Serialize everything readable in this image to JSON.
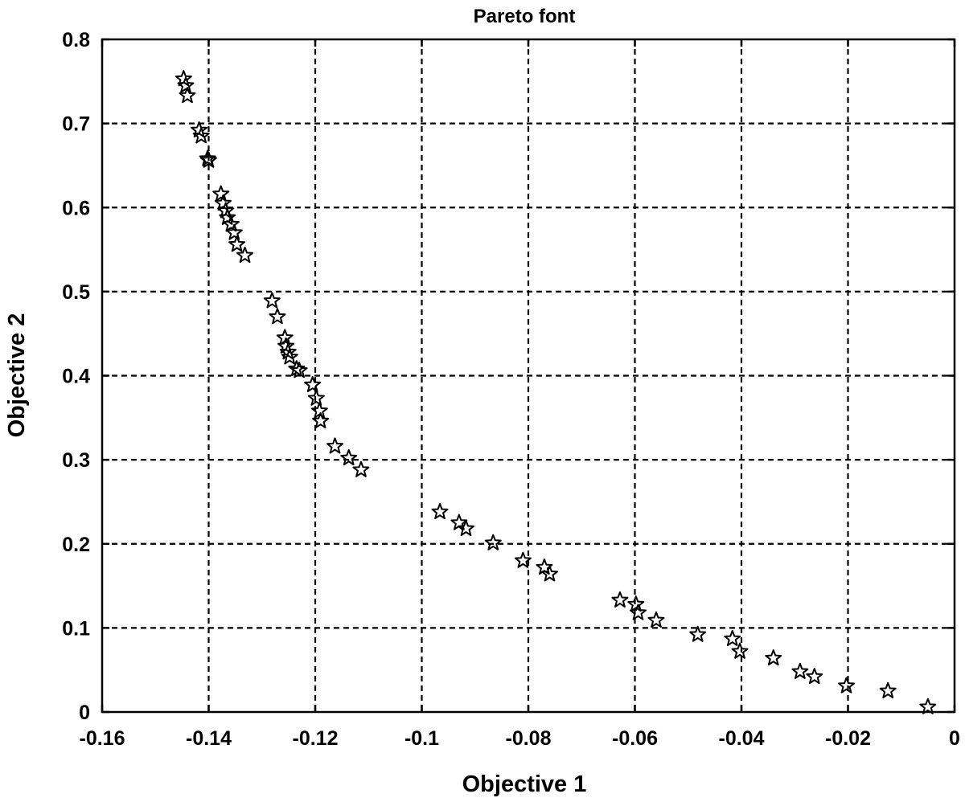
{
  "chart_data": {
    "type": "scatter",
    "title": "Pareto font",
    "xlabel": "Objective 1",
    "ylabel": "Objective 2",
    "xlim": [
      -0.16,
      0
    ],
    "ylim": [
      0,
      0.8
    ],
    "xticks": [
      -0.16,
      -0.14,
      -0.12,
      -0.1,
      -0.08,
      -0.06,
      -0.04,
      -0.02,
      0
    ],
    "xtick_labels": [
      "-0.16",
      "-0.14",
      "-0.12",
      "-0.1",
      "-0.08",
      "-0.06",
      "-0.04",
      "-0.02",
      "0"
    ],
    "yticks": [
      0,
      0.1,
      0.2,
      0.3,
      0.4,
      0.5,
      0.6,
      0.7,
      0.8
    ],
    "ytick_labels": [
      "0",
      "0.1",
      "0.2",
      "0.3",
      "0.4",
      "0.5",
      "0.6",
      "0.7",
      "0.8"
    ],
    "grid": true,
    "marker": "star",
    "series": [
      {
        "x": [
          -0.1447,
          -0.1443,
          -0.144,
          -0.1418,
          -0.1414,
          -0.1402,
          -0.14,
          -0.1377,
          -0.1373,
          -0.1368,
          -0.1365,
          -0.1358,
          -0.1352,
          -0.1347,
          -0.1332,
          -0.1281,
          -0.1271,
          -0.1257,
          -0.1255,
          -0.1251,
          -0.1248,
          -0.1235,
          -0.123,
          -0.1205,
          -0.1198,
          -0.1192,
          -0.119,
          -0.1163,
          -0.1137,
          -0.1114,
          -0.0966,
          -0.093,
          -0.0917,
          -0.0866,
          -0.081,
          -0.077,
          -0.076,
          -0.0628,
          -0.0598,
          -0.0594,
          -0.056,
          -0.0482,
          -0.0417,
          -0.0403,
          -0.034,
          -0.029,
          -0.0263,
          -0.0203,
          -0.0125,
          -0.005
        ],
        "y": [
          0.753,
          0.745,
          0.733,
          0.692,
          0.685,
          0.658,
          0.656,
          0.616,
          0.605,
          0.596,
          0.588,
          0.58,
          0.57,
          0.556,
          0.543,
          0.489,
          0.47,
          0.445,
          0.435,
          0.428,
          0.422,
          0.408,
          0.406,
          0.389,
          0.373,
          0.358,
          0.346,
          0.316,
          0.302,
          0.288,
          0.238,
          0.225,
          0.218,
          0.201,
          0.18,
          0.172,
          0.164,
          0.133,
          0.128,
          0.118,
          0.109,
          0.092,
          0.087,
          0.072,
          0.064,
          0.048,
          0.042,
          0.031,
          0.025,
          0.006
        ]
      }
    ]
  }
}
